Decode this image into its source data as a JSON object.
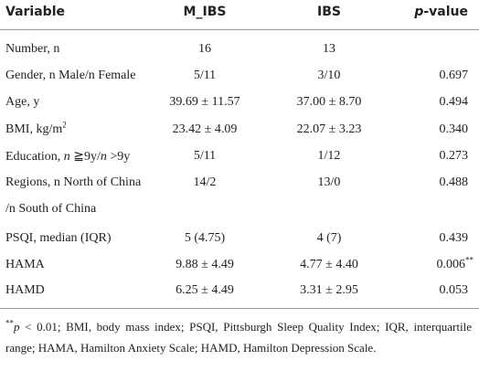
{
  "table": {
    "header": {
      "variable": "Variable",
      "m_ibs": "M_IBS",
      "ibs": "IBS",
      "p_italic": "p",
      "p_rest": "-value"
    },
    "rows": [
      {
        "variable": "Number, n",
        "m_ibs": "16",
        "ibs": "13"
      },
      {
        "variable": "Gender, n Male/n Female",
        "m_ibs": "5/11",
        "ibs": "3/10",
        "p": "0.697"
      },
      {
        "variable": "Age, y",
        "m_ibs": "39.69 ± 11.57",
        "ibs": "37.00 ± 8.70",
        "p": "0.494"
      },
      {
        "variable": "BMI, kg/m",
        "variable_sup": "2",
        "m_ibs": "23.42 ± 4.09",
        "ibs": "22.07 ± 3.23",
        "p": "0.340"
      },
      {
        "variable_parts": [
          "Education, ",
          "n",
          " ≧9y/",
          "n",
          " >9y"
        ],
        "m_ibs": "5/11",
        "ibs": "1/12",
        "p": "0.273"
      },
      {
        "variable_lines": [
          "Regions, n North of China",
          "/n South of China"
        ],
        "m_ibs": "14/2",
        "ibs": "13/0",
        "p": "0.488"
      },
      {
        "variable": "PSQI, median (IQR)",
        "m_ibs": "5 (4.75)",
        "ibs": "4 (7)",
        "p": "0.439"
      },
      {
        "variable": "HAMA",
        "m_ibs": "9.88 ± 4.49",
        "ibs": "4.77 ± 4.40",
        "p": "0.006",
        "p_sup": "**"
      },
      {
        "variable": "HAMD",
        "m_ibs": "6.25 ± 4.49",
        "ibs": "3.31 ± 2.95",
        "p": "0.053"
      }
    ],
    "footnote": {
      "mark": "**",
      "italic": "p",
      "text": " < 0.01; BMI, body mass index; PSQI, Pittsburgh Sleep Quality Index; IQR, interquartile range; HAMA, Hamilton Anxiety Scale; HAMD, Hamilton Depression Scale."
    }
  }
}
